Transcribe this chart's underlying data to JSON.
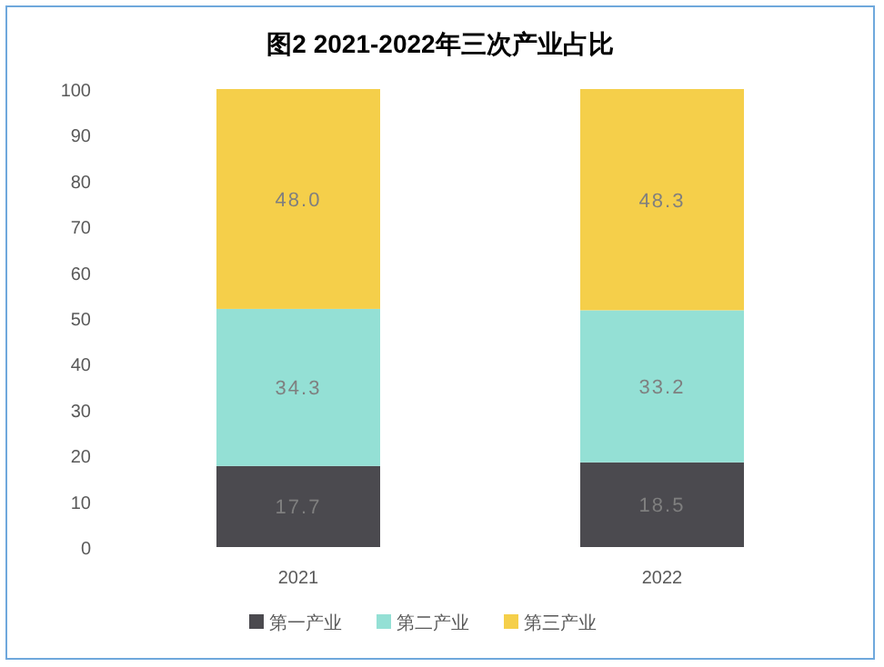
{
  "chart_data": {
    "type": "bar",
    "title": "图2 2021-2022年三次产业占比",
    "stacked": true,
    "categories": [
      "2021",
      "2022"
    ],
    "series": [
      {
        "name": "第一产业",
        "color": "#4b4a4f",
        "values": [
          17.7,
          18.5
        ],
        "value_labels": [
          "17.7",
          "18.5"
        ]
      },
      {
        "name": "第二产业",
        "color": "#94e0d5",
        "values": [
          34.3,
          33.2
        ],
        "value_labels": [
          "34.3",
          "33.2"
        ]
      },
      {
        "name": "第三产业",
        "color": "#f5cf4a",
        "values": [
          48.0,
          48.3
        ],
        "value_labels": [
          "48.0",
          "48.3"
        ]
      }
    ],
    "ylim": [
      0,
      100
    ],
    "yticks": [
      0,
      10,
      20,
      30,
      40,
      50,
      60,
      70,
      80,
      90,
      100
    ],
    "grid": false,
    "legend": "bottom"
  }
}
